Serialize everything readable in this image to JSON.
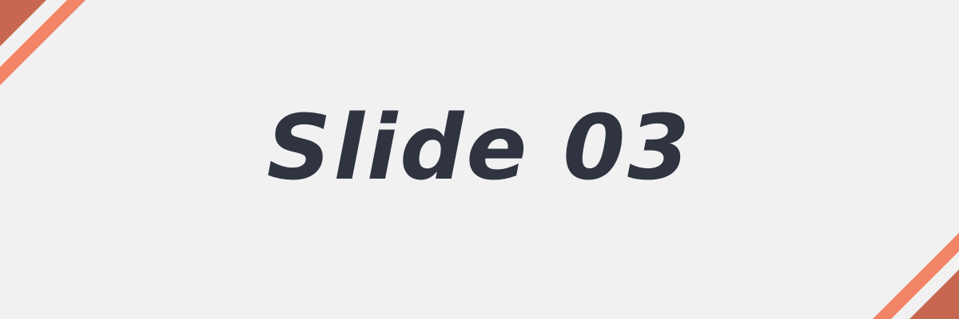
{
  "slide": {
    "title": "Slide 03"
  },
  "colors": {
    "background": "#f1f1f1",
    "title_text": "#2f3440",
    "stripe_dark": "#c76752",
    "stripe_light": "#f28468"
  }
}
